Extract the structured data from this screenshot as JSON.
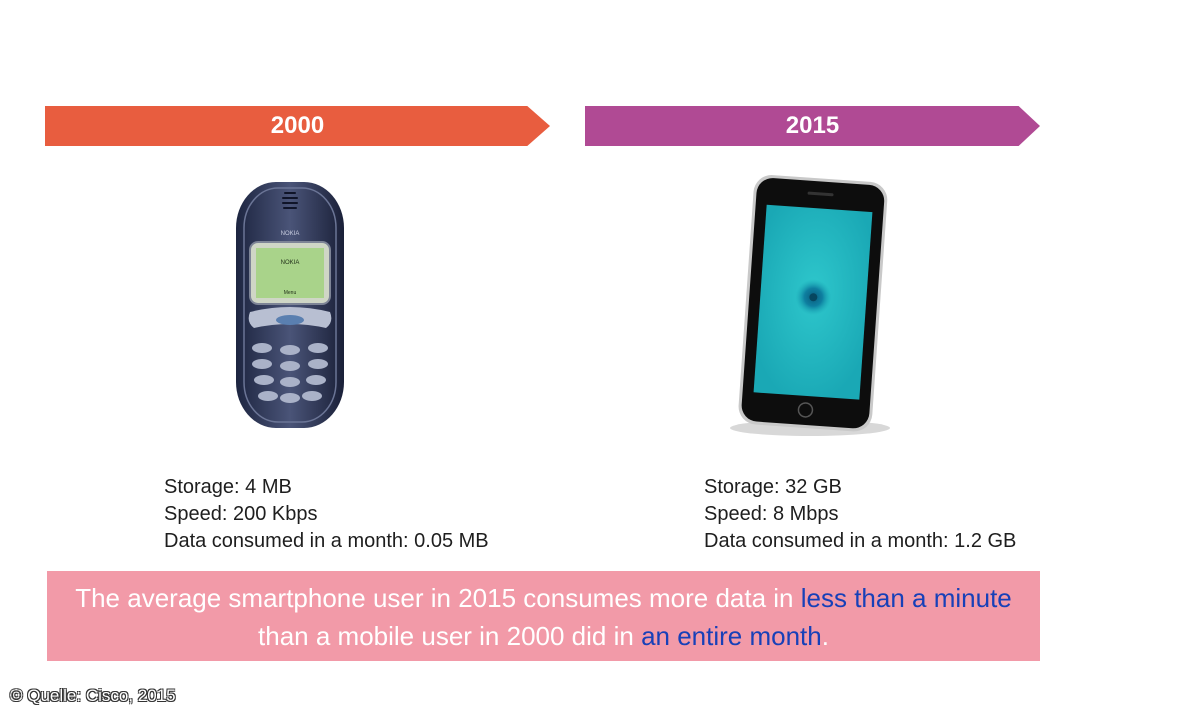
{
  "colors": {
    "banner_2000": "#e85d3f",
    "banner_2015": "#b04a94",
    "summary_bg": "#f29aa8",
    "highlight": "#1740b8"
  },
  "left": {
    "year": "2000",
    "device": "feature-phone-image",
    "phone_brand": "NOKIA",
    "screen_text_top": "NOKIA",
    "screen_text_bottom": "Menu",
    "storage": "Storage: 4 MB",
    "speed": "Speed: 200 Kbps",
    "data": "Data consumed in a month: 0.05 MB"
  },
  "right": {
    "year": "2015",
    "device": "smartphone-image",
    "storage": "Storage: 32 GB",
    "speed": "Speed: 8 Mbps",
    "data": "Data consumed in a month: 1.2 GB"
  },
  "summary": {
    "part1": "The average smartphone user in 2015 consumes more data in ",
    "hl1": "less than a minute",
    "part2": " than a mobile user in 2000 did in ",
    "hl2": "an entire month",
    "part3": "."
  },
  "source": "© Quelle: Cisco, 2015"
}
